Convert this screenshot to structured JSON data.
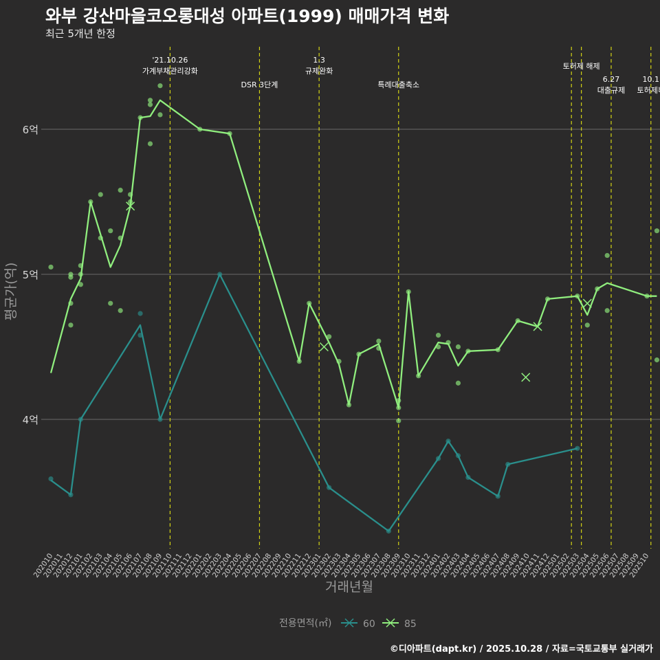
{
  "header": {
    "title": "와부 강산마을코오롱대성 아파트(1999) 매매가격 변화",
    "subtitle": "최근 5개년 한정"
  },
  "caption": "©디아파트(dapt.kr) / 2025.10.28 / 자료=국토교통부 실거래가",
  "colors": {
    "background": "#2b2a2a",
    "grid": "#6b6b6b",
    "event_line": "#d4d414",
    "series_60": "#2a8f8c",
    "series_85": "#90ee7e"
  },
  "chart_data": {
    "type": "line",
    "title": "와부 강산마을코오롱대성 아파트(1999) 매매가격 변화",
    "xlabel": "거래년월",
    "ylabel": "평균가(억)",
    "ylim": [
      3.05,
      6.88
    ],
    "yticks": [
      4,
      5,
      6
    ],
    "ytick_labels": [
      "4억",
      "5억",
      "6억"
    ],
    "months": [
      "202010",
      "202011",
      "202012",
      "202101",
      "202102",
      "202103",
      "202104",
      "202105",
      "202106",
      "202107",
      "202108",
      "202109",
      "202110",
      "202111",
      "202112",
      "202201",
      "202202",
      "202203",
      "202204",
      "202205",
      "202206",
      "202207",
      "202208",
      "202209",
      "202210",
      "202211",
      "202212",
      "202301",
      "202302",
      "202303",
      "202304",
      "202305",
      "202306",
      "202307",
      "202308",
      "202309",
      "202310",
      "202311",
      "202312",
      "202401",
      "202402",
      "202403",
      "202404",
      "202405",
      "202406",
      "202407",
      "202408",
      "202409",
      "202410",
      "202411",
      "202412",
      "202501",
      "202502",
      "202503",
      "202504",
      "202505",
      "202506",
      "202507",
      "202508",
      "202509",
      "202510"
    ],
    "legend": {
      "title": "전용면적(㎡)",
      "position": "bottom"
    },
    "series": [
      {
        "name": "60",
        "line": [
          [
            0,
            3.58
          ],
          [
            2,
            3.48
          ],
          [
            3,
            4.0
          ],
          [
            9,
            4.65
          ],
          [
            11,
            4.0
          ],
          [
            17,
            5.0
          ],
          [
            28,
            3.53
          ],
          [
            34,
            3.23
          ],
          [
            39,
            3.73
          ],
          [
            40,
            3.85
          ],
          [
            41,
            3.75
          ],
          [
            42,
            3.6
          ],
          [
            45,
            3.47
          ],
          [
            46,
            3.69
          ],
          [
            53,
            3.8
          ]
        ],
        "points": [
          [
            0,
            3.59
          ],
          [
            2,
            3.48
          ],
          [
            3,
            4.0
          ],
          [
            9,
            4.73
          ],
          [
            9,
            4.58
          ],
          [
            11,
            4.0
          ],
          [
            17,
            5.0
          ],
          [
            28,
            3.53
          ],
          [
            34,
            3.23
          ],
          [
            39,
            3.73
          ],
          [
            40,
            3.85
          ],
          [
            41,
            3.75
          ],
          [
            42,
            3.6
          ],
          [
            45,
            3.47
          ],
          [
            46,
            3.69
          ],
          [
            53,
            3.8
          ]
        ],
        "crosses": []
      },
      {
        "name": "85",
        "line": [
          [
            0,
            4.32
          ],
          [
            2,
            4.83
          ],
          [
            3,
            4.97
          ],
          [
            4,
            5.5
          ],
          [
            6,
            5.05
          ],
          [
            7,
            5.2
          ],
          [
            8,
            5.47
          ],
          [
            9,
            6.08
          ],
          [
            10,
            6.09
          ],
          [
            11,
            6.2
          ],
          [
            15,
            6.0
          ],
          [
            18,
            5.97
          ],
          [
            25,
            4.4
          ],
          [
            26,
            4.8
          ],
          [
            28,
            4.53
          ],
          [
            29,
            4.38
          ],
          [
            30,
            4.1
          ],
          [
            31,
            4.45
          ],
          [
            33,
            4.52
          ],
          [
            35,
            4.08
          ],
          [
            36,
            4.88
          ],
          [
            37,
            4.3
          ],
          [
            39,
            4.53
          ],
          [
            40,
            4.52
          ],
          [
            41,
            4.37
          ],
          [
            42,
            4.47
          ],
          [
            45,
            4.48
          ],
          [
            47,
            4.68
          ],
          [
            49,
            4.64
          ],
          [
            50,
            4.83
          ],
          [
            53,
            4.85
          ],
          [
            54,
            4.72
          ],
          [
            55,
            4.9
          ],
          [
            56,
            4.94
          ],
          [
            60,
            4.85
          ],
          [
            61,
            4.85
          ]
        ],
        "points": [
          [
            0,
            5.05
          ],
          [
            2,
            4.98
          ],
          [
            2,
            5.0
          ],
          [
            2,
            4.8
          ],
          [
            2,
            4.65
          ],
          [
            3,
            5.06
          ],
          [
            3,
            5.0
          ],
          [
            3,
            4.93
          ],
          [
            4,
            5.5
          ],
          [
            5,
            5.55
          ],
          [
            5,
            5.25
          ],
          [
            6,
            5.3
          ],
          [
            6,
            4.8
          ],
          [
            7,
            5.58
          ],
          [
            7,
            5.25
          ],
          [
            7,
            4.75
          ],
          [
            8,
            5.55
          ],
          [
            8,
            5.5
          ],
          [
            9,
            6.08
          ],
          [
            10,
            6.2
          ],
          [
            10,
            6.17
          ],
          [
            10,
            5.9
          ],
          [
            11,
            6.3
          ],
          [
            11,
            6.1
          ],
          [
            15,
            6.0
          ],
          [
            18,
            5.97
          ],
          [
            25,
            4.4
          ],
          [
            26,
            4.8
          ],
          [
            28,
            4.57
          ],
          [
            29,
            4.4
          ],
          [
            30,
            4.1
          ],
          [
            31,
            4.45
          ],
          [
            33,
            4.54
          ],
          [
            33,
            4.49
          ],
          [
            35,
            4.13
          ],
          [
            35,
            4.08
          ],
          [
            35,
            3.99
          ],
          [
            36,
            4.88
          ],
          [
            37,
            4.3
          ],
          [
            39,
            4.58
          ],
          [
            39,
            4.5
          ],
          [
            40,
            4.53
          ],
          [
            41,
            4.5
          ],
          [
            41,
            4.25
          ],
          [
            42,
            4.47
          ],
          [
            45,
            4.48
          ],
          [
            47,
            4.68
          ],
          [
            50,
            4.83
          ],
          [
            53,
            4.85
          ],
          [
            54,
            4.65
          ],
          [
            55,
            4.9
          ],
          [
            56,
            5.13
          ],
          [
            56,
            4.75
          ],
          [
            60,
            4.85
          ],
          [
            61,
            5.3
          ],
          [
            61,
            4.41
          ]
        ],
        "crosses": [
          [
            8,
            5.47
          ],
          [
            27.5,
            4.5
          ],
          [
            47.8,
            4.29
          ],
          [
            49,
            4.64
          ],
          [
            54,
            4.8
          ]
        ]
      }
    ],
    "events": [
      {
        "x": 12,
        "labels": [
          "'21.10.26",
          "가계부채관리강화"
        ],
        "row": 0
      },
      {
        "x": 21,
        "labels": [
          "DSR 3단계"
        ],
        "row": 2
      },
      {
        "x": 27,
        "labels": [
          "1.3",
          "규제완화"
        ],
        "row": 0
      },
      {
        "x": 35,
        "labels": [
          "특례대출축소"
        ],
        "row": 2
      },
      {
        "x": 52.4,
        "labels": [],
        "row": 0
      },
      {
        "x": 53.4,
        "labels": [
          "토허제 해제"
        ],
        "row": 1
      },
      {
        "x": 56.4,
        "labels": [
          "6.27",
          "대출규제"
        ],
        "row": 3
      },
      {
        "x": 60.4,
        "labels": [
          "10.1",
          "토허제확"
        ],
        "row": 3
      }
    ]
  }
}
